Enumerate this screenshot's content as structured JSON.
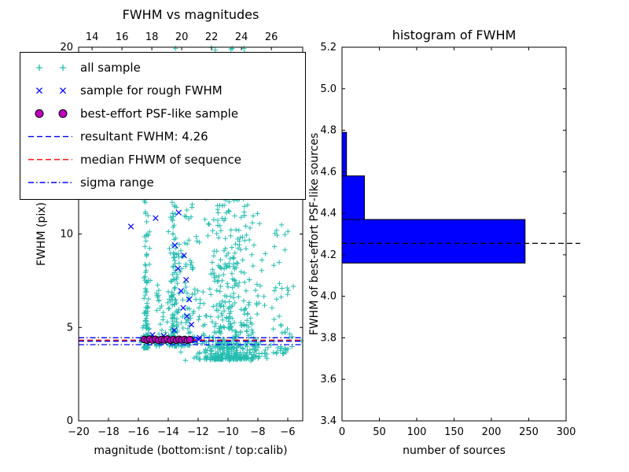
{
  "figure": {
    "background": "#ffffff"
  },
  "chart_data": [
    {
      "type": "scatter",
      "title": "FWHM vs magnitudes",
      "xlabel": "magnitude (bottom:isnt / top:calib)",
      "ylabel": "FWHM (pix)",
      "xlim": [
        -20,
        -5
      ],
      "ylim": [
        0,
        20
      ],
      "x_ticks": [
        -20,
        -18,
        -16,
        -14,
        -12,
        -10,
        -8,
        -6
      ],
      "x_tick_labels": [
        "−20",
        "−18",
        "−16",
        "−14",
        "−12",
        "−10",
        "−8",
        "−6"
      ],
      "y_ticks": [
        0,
        5,
        10,
        15,
        20
      ],
      "y_tick_labels": [
        "0",
        "5",
        "10",
        "15",
        "20"
      ],
      "top_axis": {
        "ticks": [
          14,
          16,
          18,
          20,
          22,
          24,
          26
        ],
        "tick_labels": [
          "14",
          "16",
          "18",
          "20",
          "22",
          "24",
          "26"
        ],
        "offset": 33.1
      },
      "series": {
        "all_sample": {
          "label": "all sample",
          "marker": "+",
          "color": "#25bdb0",
          "clusters": [
            {
              "n": 110,
              "x": [
                -15.45,
                0.1
              ],
              "y_range": [
                3.9,
                13.0
              ],
              "y_bias": 2.3
            },
            {
              "n": 28,
              "x": [
                -14.6,
                0.15
              ],
              "y_range": [
                4.0,
                7.5
              ],
              "y_bias": 1.6
            },
            {
              "n": 200,
              "x": [
                -13.65,
                0.17
              ],
              "y_range": [
                4.0,
                20.0
              ],
              "y_bias": 1.7
            },
            {
              "n": 80,
              "x": [
                -12.65,
                0.28
              ],
              "y_range": [
                4.0,
                13.5
              ],
              "y_bias": 2.0
            },
            {
              "n": 560,
              "x": [
                -9.9,
                1.15
              ],
              "y_range": [
                3.3,
                16.0
              ],
              "y_bias": 2.6
            },
            {
              "n": 90,
              "x": [
                -9.7,
                1.05
              ],
              "y_range": [
                11.5,
                20.0
              ],
              "y_bias": 1.0
            },
            {
              "n": 55,
              "x": [
                -6.6,
                0.55
              ],
              "y_range": [
                3.6,
                10.5
              ],
              "y_bias": 2.2
            },
            {
              "n": 60,
              "x": [
                -9.5,
                1.4
              ],
              "y_range": [
                3.2,
                4.2
              ],
              "y_bias": 1.0
            },
            {
              "n": 45,
              "x": [
                -14.0,
                1.0
              ],
              "y_range": [
                4.15,
                4.5
              ],
              "y_bias": 1.0
            }
          ],
          "seed": 1234
        },
        "rough_fwhm": {
          "label": "sample for rough FWHM",
          "marker": "x",
          "color": "#0000ff",
          "points": [
            [
              -16.5,
              10.4
            ],
            [
              -14.85,
              10.85
            ],
            [
              -13.3,
              11.15
            ],
            [
              -13.55,
              9.4
            ],
            [
              -12.95,
              8.85
            ],
            [
              -13.35,
              8.15
            ],
            [
              -12.8,
              7.55
            ],
            [
              -13.15,
              6.95
            ],
            [
              -12.6,
              6.5
            ],
            [
              -13.0,
              6.05
            ],
            [
              -12.75,
              5.6
            ],
            [
              -12.45,
              5.15
            ],
            [
              -13.6,
              4.85
            ],
            [
              -15.05,
              4.6
            ],
            [
              -14.3,
              4.55
            ],
            [
              -11.9,
              4.45
            ],
            [
              -15.5,
              4.32
            ],
            [
              -15.2,
              4.28
            ],
            [
              -14.9,
              4.35
            ],
            [
              -14.6,
              4.3
            ],
            [
              -14.3,
              4.26
            ],
            [
              -14.0,
              4.33
            ],
            [
              -13.7,
              4.29
            ],
            [
              -13.4,
              4.35
            ],
            [
              -13.1,
              4.3
            ],
            [
              -12.8,
              4.27
            ],
            [
              -12.5,
              4.33
            ],
            [
              -12.2,
              4.3
            ],
            [
              -11.95,
              4.36
            ]
          ]
        },
        "psf_like": {
          "label": "best-effort PSF-like sample",
          "marker": "o",
          "color": "#bf00bf",
          "edge_color": "#000000",
          "points": [
            [
              -15.6,
              4.36
            ],
            [
              -15.42,
              4.32
            ],
            [
              -15.25,
              4.38
            ],
            [
              -15.05,
              4.33
            ],
            [
              -14.85,
              4.37
            ],
            [
              -14.65,
              4.31
            ],
            [
              -14.45,
              4.36
            ],
            [
              -14.25,
              4.33
            ],
            [
              -14.05,
              4.38
            ],
            [
              -13.85,
              4.32
            ],
            [
              -13.65,
              4.36
            ],
            [
              -13.45,
              4.31
            ],
            [
              -13.28,
              4.37
            ],
            [
              -13.1,
              4.33
            ],
            [
              -12.9,
              4.36
            ],
            [
              -12.72,
              4.32
            ],
            [
              -12.55,
              4.35
            ]
          ]
        }
      },
      "lines": [
        {
          "name": "resultant FWHM",
          "y": 4.26,
          "color": "#0000ff",
          "style": "dashed"
        },
        {
          "name": "median FHWM of sequence",
          "y": 4.32,
          "color": "#ff0000",
          "style": "dashed"
        },
        {
          "name": "sigma range low",
          "y": 4.08,
          "color": "#0000ff",
          "style": "dashdot"
        },
        {
          "name": "sigma range high",
          "y": 4.45,
          "color": "#0000ff",
          "style": "dashdot"
        }
      ],
      "legend": [
        {
          "label": "all sample",
          "marker": "+",
          "color": "#25bdb0"
        },
        {
          "label": "sample for rough FWHM",
          "marker": "x",
          "color": "#0000ff"
        },
        {
          "label": "best-effort PSF-like sample",
          "marker": "o",
          "color": "#bf00bf"
        },
        {
          "label": "resultant FWHM: 4.26",
          "line": "dashed",
          "color": "#0000ff"
        },
        {
          "label": "median FHWM of sequence",
          "line": "dashed",
          "color": "#ff0000"
        },
        {
          "label": "sigma range",
          "line": "dashdot",
          "color": "#0000ff"
        }
      ]
    },
    {
      "type": "bar",
      "orientation": "horizontal",
      "title": "histogram of FWHM",
      "xlabel": "number of sources",
      "ylabel": "FWHM of best-effort PSF-like sources",
      "xlim": [
        0,
        300
      ],
      "ylim": [
        3.4,
        5.2
      ],
      "x_ticks": [
        0,
        50,
        100,
        150,
        200,
        250,
        300
      ],
      "x_tick_labels": [
        "0",
        "50",
        "100",
        "150",
        "200",
        "250",
        "300"
      ],
      "y_ticks": [
        3.4,
        3.6,
        3.8,
        4.0,
        4.2,
        4.4,
        4.6,
        4.8,
        5.0,
        5.2
      ],
      "y_tick_labels": [
        "3.4",
        "3.6",
        "3.8",
        "4.0",
        "4.2",
        "4.4",
        "4.6",
        "4.8",
        "5.0",
        "5.2"
      ],
      "bin_edges": [
        4.16,
        4.37,
        4.58,
        4.79
      ],
      "counts": [
        245,
        30,
        6
      ],
      "bar_color": "#0000ff",
      "bar_edge_color": "#000000",
      "dashed_line_y": 4.255,
      "dashed_line_color": "#000000"
    }
  ]
}
